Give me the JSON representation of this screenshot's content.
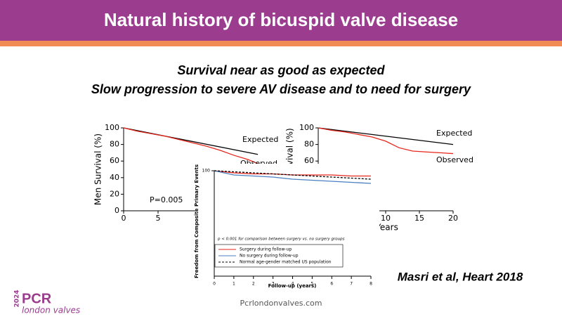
{
  "header": {
    "title": "Natural history of bicuspid valve disease"
  },
  "subtitle": [
    "Survival near as good as expected",
    "Slow progression to severe AV disease and to need for surgery"
  ],
  "citation": "Masri et al, Heart 2018",
  "footer": "Pcrlondonvalves.com",
  "logo": {
    "year": "2024",
    "brand": "PCR",
    "event": "london valves"
  },
  "chart_data": [
    {
      "type": "line",
      "ylabel": "Men Survival (%)",
      "xlim": [
        0,
        20
      ],
      "ylim": [
        0,
        100
      ],
      "xticks": [
        0,
        5
      ],
      "yticks": [
        0,
        20,
        40,
        60,
        80,
        100
      ],
      "annotations": [
        "Expected",
        "Observed",
        "P=0.005"
      ],
      "series": [
        {
          "name": "Expected",
          "color": "#000000",
          "x": [
            0,
            19.5
          ],
          "values": [
            100,
            68
          ]
        },
        {
          "name": "Observed",
          "color": "#e8261c",
          "x": [
            0,
            2,
            4,
            6,
            8,
            10,
            12,
            14,
            16,
            18,
            19.5
          ],
          "values": [
            100,
            96,
            93,
            90,
            86,
            82,
            78,
            73,
            67,
            62,
            57
          ]
        }
      ]
    },
    {
      "type": "line",
      "ylabel": "urvival (%)",
      "xlabel": "Years",
      "xlim": [
        0,
        20
      ],
      "ylim": [
        0,
        100
      ],
      "xticks": [
        10,
        15,
        20
      ],
      "yticks": [
        60,
        80,
        100
      ],
      "annotations": [
        "Expected",
        "Observed"
      ],
      "series": [
        {
          "name": "Expected",
          "color": "#000000",
          "x": [
            0,
            20
          ],
          "values": [
            100,
            80
          ]
        },
        {
          "name": "Observed",
          "color": "#e8261c",
          "x": [
            0,
            2,
            4,
            6,
            8,
            10,
            12,
            14,
            16,
            18,
            20
          ],
          "values": [
            100,
            97,
            95,
            92,
            89,
            84,
            76,
            72,
            71,
            70,
            69
          ]
        }
      ]
    },
    {
      "type": "line",
      "ylabel": "Freedom from Composite Primary Events",
      "xlabel": "Follow-up (years)",
      "xlim": [
        0,
        8
      ],
      "ylim": [
        0,
        100
      ],
      "xticks": [
        0,
        1,
        2,
        3,
        4,
        5,
        6,
        7,
        8
      ],
      "yticks": [
        100
      ],
      "annotations": [
        "p < 0.001 for comparison between surgery vs. no surgery groups"
      ],
      "legend": true,
      "series": [
        {
          "name": "Surgery during follow-up",
          "color": "#e8261c",
          "x": [
            0,
            1,
            2,
            3,
            4,
            5,
            6,
            7,
            8
          ],
          "values": [
            100,
            98,
            97,
            97,
            96,
            96,
            96,
            95,
            95
          ]
        },
        {
          "name": "No surgery during follow-up",
          "color": "#4a7fc1",
          "x": [
            0,
            1,
            2,
            3,
            4,
            5,
            6,
            7,
            8
          ],
          "values": [
            100,
            96,
            95,
            94,
            92,
            91,
            90,
            89,
            88
          ]
        },
        {
          "name": "Normal age-gender matched US population",
          "color": "#000000",
          "dashed": true,
          "x": [
            0,
            1,
            2,
            3,
            4,
            5,
            6,
            7,
            8
          ],
          "values": [
            100,
            99,
            98,
            97,
            96,
            95,
            94,
            93,
            92
          ]
        }
      ]
    }
  ]
}
